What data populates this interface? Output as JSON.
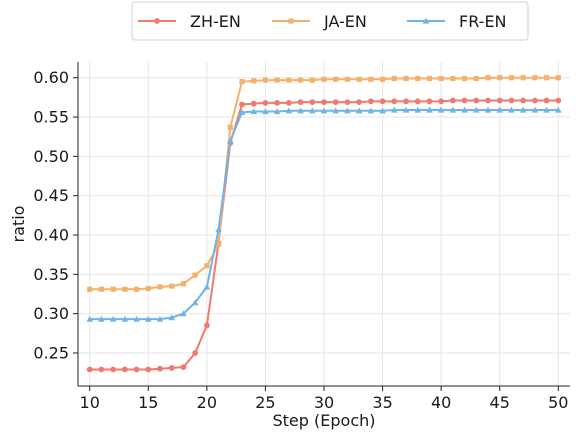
{
  "chart_data": {
    "type": "line",
    "title": "",
    "xlabel": "Step (Epoch)",
    "ylabel": "ratio",
    "xlim": [
      9.0,
      51.0
    ],
    "ylim": [
      0.208,
      0.62
    ],
    "xticks": [
      "10",
      "15",
      "20",
      "25",
      "30",
      "35",
      "40",
      "45",
      "50"
    ],
    "yticks": [
      "0.25",
      "0.30",
      "0.35",
      "0.40",
      "0.45",
      "0.50",
      "0.55",
      "0.60"
    ],
    "grid": true,
    "legend_position": "top-center",
    "x": [
      10,
      11,
      12,
      13,
      14,
      15,
      16,
      17,
      18,
      19,
      20,
      21,
      22,
      23,
      24,
      25,
      26,
      27,
      28,
      29,
      30,
      31,
      32,
      33,
      34,
      35,
      36,
      37,
      38,
      39,
      40,
      41,
      42,
      43,
      44,
      45,
      46,
      47,
      48,
      49,
      50
    ],
    "series": [
      {
        "name": "ZH-EN",
        "color": "#EF7A6D",
        "marker": "circle",
        "values": [
          0.229,
          0.229,
          0.229,
          0.229,
          0.229,
          0.229,
          0.23,
          0.231,
          0.232,
          0.25,
          0.285,
          0.39,
          0.517,
          0.566,
          0.567,
          0.568,
          0.568,
          0.568,
          0.569,
          0.569,
          0.569,
          0.569,
          0.569,
          0.569,
          0.57,
          0.57,
          0.57,
          0.57,
          0.57,
          0.57,
          0.57,
          0.571,
          0.571,
          0.571,
          0.571,
          0.571,
          0.571,
          0.571,
          0.571,
          0.571,
          0.571
        ]
      },
      {
        "name": "JA-EN",
        "color": "#F4B16B",
        "marker": "square",
        "values": [
          0.331,
          0.331,
          0.331,
          0.331,
          0.331,
          0.332,
          0.334,
          0.335,
          0.338,
          0.349,
          0.361,
          0.388,
          0.537,
          0.595,
          0.596,
          0.597,
          0.597,
          0.597,
          0.597,
          0.597,
          0.598,
          0.598,
          0.598,
          0.598,
          0.598,
          0.598,
          0.599,
          0.599,
          0.599,
          0.599,
          0.599,
          0.599,
          0.599,
          0.599,
          0.6,
          0.6,
          0.6,
          0.6,
          0.6,
          0.6,
          0.6
        ]
      },
      {
        "name": "FR-EN",
        "color": "#6EB4E8",
        "marker": "triangle",
        "values": [
          0.293,
          0.293,
          0.293,
          0.293,
          0.293,
          0.293,
          0.293,
          0.295,
          0.3,
          0.314,
          0.334,
          0.407,
          0.52,
          0.556,
          0.557,
          0.557,
          0.557,
          0.558,
          0.558,
          0.558,
          0.558,
          0.558,
          0.558,
          0.558,
          0.558,
          0.558,
          0.559,
          0.559,
          0.559,
          0.559,
          0.559,
          0.559,
          0.559,
          0.559,
          0.559,
          0.559,
          0.559,
          0.559,
          0.559,
          0.559,
          0.559
        ]
      }
    ]
  }
}
